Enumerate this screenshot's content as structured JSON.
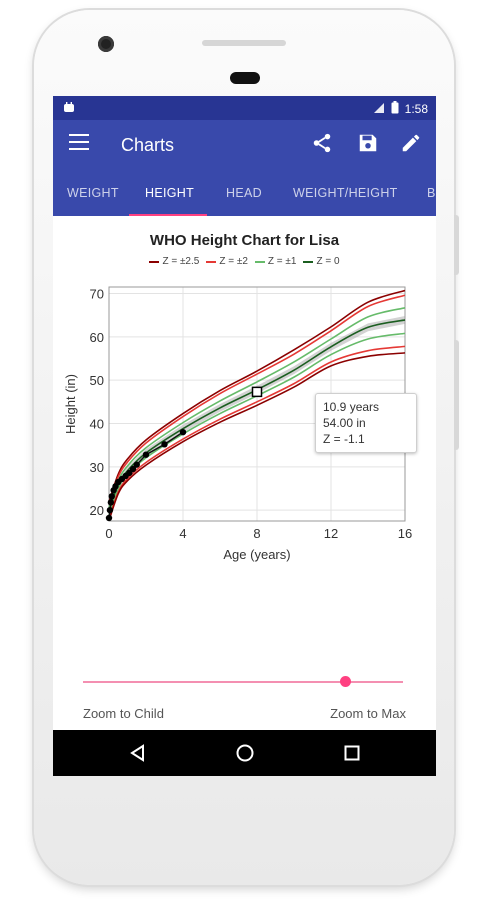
{
  "status_bar": {
    "time": "1:58"
  },
  "app_bar": {
    "title": "Charts"
  },
  "tabs": [
    {
      "label": "WEIGHT",
      "active": false
    },
    {
      "label": "HEIGHT",
      "active": true
    },
    {
      "label": "HEAD",
      "active": false
    },
    {
      "label": "WEIGHT/HEIGHT",
      "active": false
    },
    {
      "label": "B",
      "active": false
    }
  ],
  "colors": {
    "primary": "#3949ab",
    "primary_dark": "#283593",
    "accent": "#ff4081"
  },
  "chart_data": {
    "type": "line",
    "title": "WHO Height Chart for Lisa",
    "xlabel": "Age (years)",
    "ylabel": "Height (in)",
    "xlim": [
      0,
      16
    ],
    "ylim": [
      17.5,
      71.5
    ],
    "xticks": [
      0,
      4,
      8,
      12,
      16
    ],
    "yticks": [
      20,
      30,
      40,
      50,
      60,
      70
    ],
    "grid": true,
    "legend": [
      {
        "label": "Z = ±2.5",
        "color": "#8b0000"
      },
      {
        "label": "Z = ±2",
        "color": "#e53935"
      },
      {
        "label": "Z = ±1",
        "color": "#66bb6a"
      },
      {
        "label": "Z = 0",
        "color": "#1b5e20"
      }
    ],
    "series": [
      {
        "z": 2.5,
        "color": "#8b0000",
        "x": [
          0,
          0.5,
          1,
          2,
          4,
          6,
          8,
          10,
          12,
          14,
          16
        ],
        "y": [
          21.9,
          28.3,
          31.8,
          36.2,
          42.3,
          47.6,
          52.1,
          57.0,
          62.3,
          68.0,
          70.7
        ]
      },
      {
        "z": 2,
        "color": "#e53935",
        "x": [
          0,
          0.5,
          1,
          2,
          4,
          6,
          8,
          10,
          12,
          14,
          16
        ],
        "y": [
          21.4,
          27.7,
          31.1,
          35.5,
          41.6,
          46.9,
          51.4,
          56.0,
          61.4,
          67.0,
          69.6
        ]
      },
      {
        "z": 1,
        "color": "#66bb6a",
        "x": [
          0,
          0.5,
          1,
          2,
          4,
          6,
          8,
          10,
          12,
          14,
          16
        ],
        "y": [
          20.6,
          26.8,
          30.2,
          34.4,
          40.2,
          45.2,
          49.6,
          54.2,
          59.5,
          64.6,
          66.7
        ]
      },
      {
        "z": 0,
        "color": "#1b5e20",
        "x": [
          0,
          0.5,
          1,
          2,
          4,
          6,
          8,
          10,
          12,
          14,
          16
        ],
        "y": [
          19.6,
          25.8,
          29.1,
          33.2,
          38.8,
          43.6,
          47.8,
          52.3,
          57.7,
          62.2,
          63.9
        ]
      },
      {
        "z": -1,
        "color": "#66bb6a",
        "x": [
          0,
          0.5,
          1,
          2,
          4,
          6,
          8,
          10,
          12,
          14,
          16
        ],
        "y": [
          18.8,
          25.0,
          28.2,
          32.1,
          37.6,
          42.3,
          46.4,
          50.7,
          55.9,
          59.5,
          60.8
        ]
      },
      {
        "z": -2,
        "color": "#e53935",
        "x": [
          0,
          0.5,
          1,
          2,
          4,
          6,
          8,
          10,
          12,
          14,
          16
        ],
        "y": [
          18.0,
          24.2,
          27.3,
          31.0,
          36.4,
          41.0,
          45.0,
          49.2,
          54.2,
          56.8,
          57.8
        ]
      },
      {
        "z": -2.5,
        "color": "#8b0000",
        "x": [
          0,
          0.5,
          1,
          2,
          4,
          6,
          8,
          10,
          12,
          14,
          16
        ],
        "y": [
          17.6,
          23.8,
          26.8,
          30.4,
          35.8,
          40.3,
          44.2,
          48.4,
          53.3,
          55.5,
          56.3
        ]
      }
    ],
    "child_points": {
      "x": [
        0,
        0.05,
        0.1,
        0.15,
        0.25,
        0.35,
        0.5,
        0.7,
        0.9,
        1.1,
        1.3,
        1.5,
        2.0,
        3.0,
        4.0
      ],
      "y": [
        18.2,
        20.0,
        21.8,
        23.2,
        24.6,
        25.5,
        26.5,
        27.2,
        27.9,
        28.6,
        29.5,
        30.5,
        32.8,
        35.2,
        38.0
      ]
    },
    "selected_point": {
      "x": 8,
      "y": 47.3
    },
    "tooltip": {
      "age": "10.9 years",
      "height": "54.00 in",
      "z": "Z = -1.1"
    }
  },
  "slider": {
    "value": 0.82
  },
  "zoom": {
    "left_label": "Zoom to Child",
    "right_label": "Zoom to Max"
  }
}
